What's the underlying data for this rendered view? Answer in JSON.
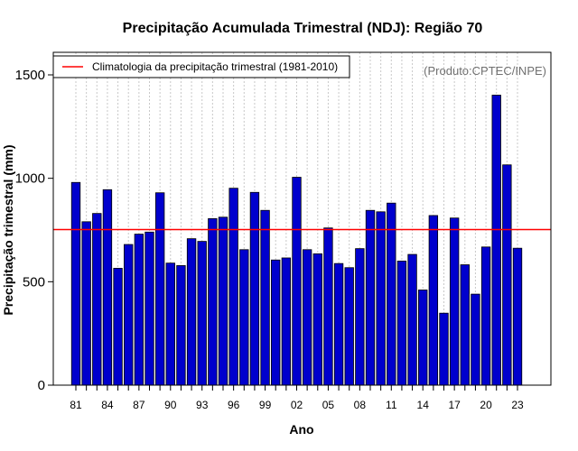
{
  "chart_data": {
    "type": "bar",
    "title": "Precipitação Acumulada Trimestral (NDJ): Região 70",
    "xlabel": "Ano",
    "ylabel": "Precipitação trimestral (mm)",
    "ylim": [
      0,
      1600
    ],
    "yticks": [
      0,
      500,
      1000,
      1500
    ],
    "ytick_labels": [
      "0",
      "500",
      "1000",
      "1500"
    ],
    "categories": [
      "81",
      "82",
      "83",
      "84",
      "85",
      "86",
      "87",
      "88",
      "89",
      "90",
      "91",
      "92",
      "93",
      "94",
      "95",
      "96",
      "97",
      "98",
      "99",
      "00",
      "01",
      "02",
      "03",
      "04",
      "05",
      "06",
      "07",
      "08",
      "09",
      "10",
      "11",
      "12",
      "13",
      "14",
      "15",
      "16",
      "17",
      "18",
      "19",
      "20",
      "21",
      "22",
      "23"
    ],
    "xtick_labels": [
      "81",
      "84",
      "87",
      "90",
      "93",
      "96",
      "99",
      "02",
      "05",
      "08",
      "11",
      "14",
      "17",
      "20",
      "23"
    ],
    "values": [
      980,
      790,
      830,
      945,
      565,
      680,
      730,
      740,
      930,
      590,
      578,
      708,
      695,
      805,
      812,
      952,
      655,
      932,
      845,
      605,
      615,
      1005,
      655,
      635,
      760,
      588,
      568,
      660,
      845,
      838,
      880,
      600,
      632,
      460,
      820,
      348,
      808,
      582,
      440,
      668,
      1402,
      1065,
      662
    ],
    "climatology": 752,
    "bar_color": "#0000CD",
    "line_color": "#FF0000",
    "grid": true,
    "legend": {
      "position": "top-left",
      "entries": [
        {
          "label": "Climatologia da precipitação trimestral (1981-2010)",
          "color": "#FF0000"
        }
      ]
    },
    "annotation": "(Produto:CPTEC/INPE)"
  }
}
